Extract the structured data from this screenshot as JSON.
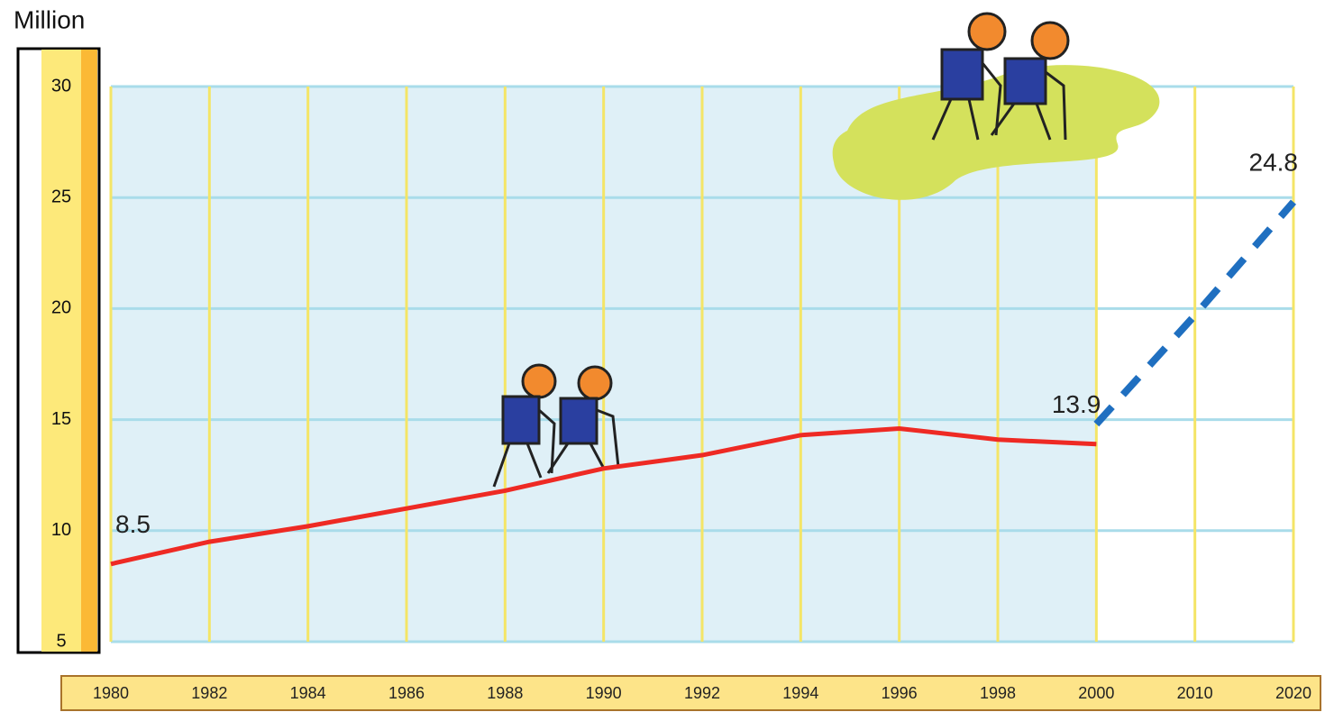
{
  "chart_data": {
    "type": "line",
    "y_label": "Million",
    "categories": [
      "1980",
      "1982",
      "1984",
      "1986",
      "1988",
      "1990",
      "1992",
      "1994",
      "1996",
      "1998",
      "2000",
      "2010",
      "2020"
    ],
    "series": [
      {
        "color": "#ee2a24",
        "line_style": "solid",
        "values": [
          8.5,
          9.5,
          10.2,
          11.0,
          11.8,
          12.8,
          13.4,
          14.3,
          14.6,
          14.1,
          13.9,
          null,
          null
        ]
      },
      {
        "color": "#1f6fc0",
        "line_style": "dashed",
        "values": [
          null,
          null,
          null,
          null,
          null,
          null,
          null,
          null,
          null,
          null,
          14.8,
          19.7,
          24.8
        ]
      }
    ],
    "labeled_points": [
      [
        0,
        0
      ],
      [
        0,
        10
      ],
      [
        1,
        12
      ]
    ],
    "ylim": [
      5,
      30
    ],
    "yticks": [
      5,
      10,
      15,
      20,
      25,
      30
    ],
    "grid": true
  }
}
